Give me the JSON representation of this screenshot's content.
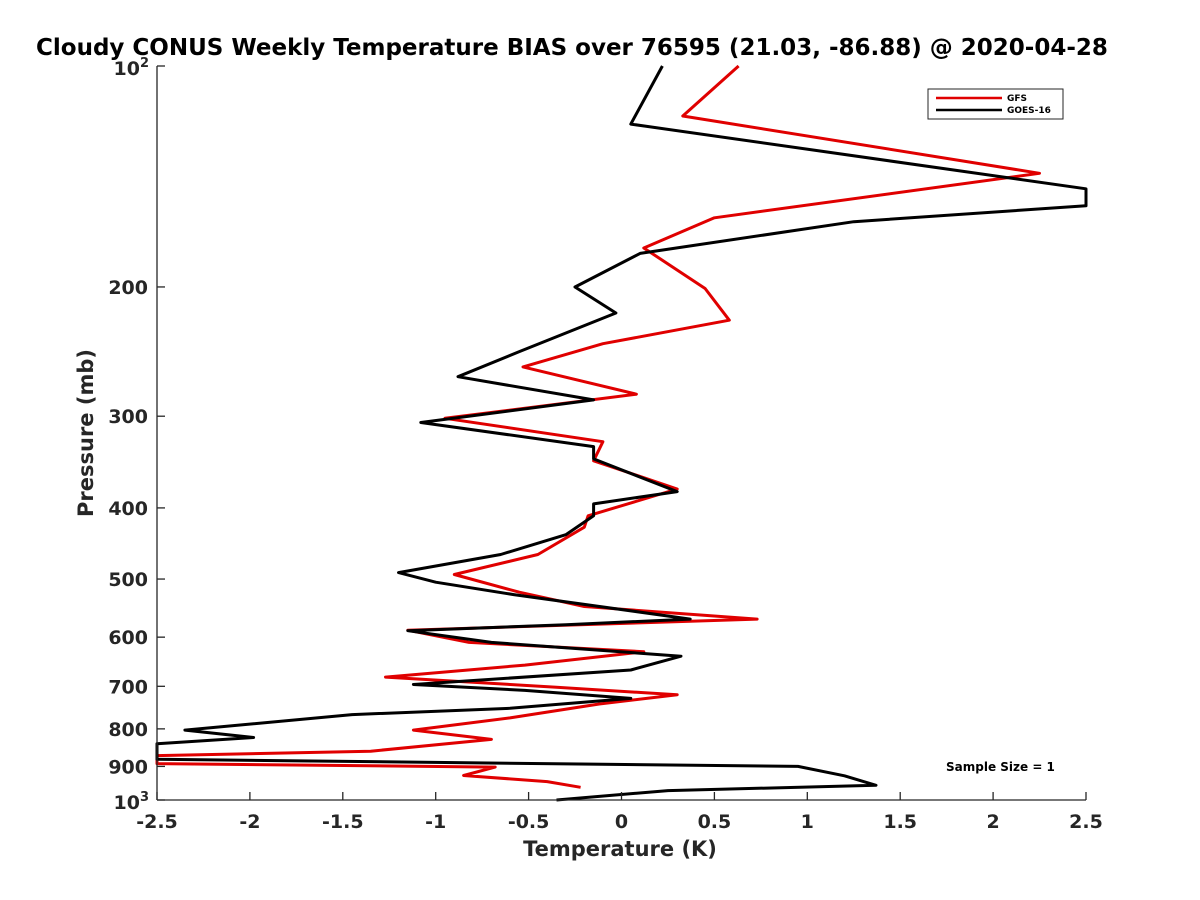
{
  "chart_data": {
    "type": "line",
    "title": "Cloudy CONUS Weekly Temperature BIAS over 76595 (21.03, -86.88) @ 2020-04-28",
    "xlabel": "Temperature (K)",
    "ylabel": "Pressure (mb)",
    "xlim": [
      -2.5,
      2.5
    ],
    "ylim": [
      100,
      1000
    ],
    "yscale": "log",
    "yreverse": true,
    "xticks": [
      -2.5,
      -2,
      -1.5,
      -1,
      -0.5,
      0,
      0.5,
      1,
      1.5,
      2,
      2.5
    ],
    "xtick_labels": [
      "-2.5",
      "-2",
      "-1.5",
      "-1",
      "-0.5",
      "0",
      "0.5",
      "1",
      "1.5",
      "2",
      "2.5"
    ],
    "yticks": [
      200,
      300,
      400,
      500,
      600,
      700,
      800,
      900
    ],
    "ytick_labels": [
      "200",
      "300",
      "400",
      "500",
      "600",
      "700",
      "800",
      "900"
    ],
    "ytick_min": {
      "base": "10",
      "exp": "2"
    },
    "ytick_max": {
      "base": "10",
      "exp": "3"
    },
    "legend_position": "top-right",
    "annotation": "Sample Size = 1",
    "series": [
      {
        "name": "GFS",
        "color": "#e00000",
        "points": [
          [
            0.63,
            100
          ],
          [
            0.33,
            117
          ],
          [
            2.25,
            140
          ],
          [
            0.5,
            161
          ],
          [
            0.12,
            177
          ],
          [
            0.45,
            201
          ],
          [
            0.58,
            222
          ],
          [
            -0.1,
            239
          ],
          [
            -0.53,
            257
          ],
          [
            0.08,
            280
          ],
          [
            -0.95,
            302
          ],
          [
            -0.1,
            325
          ],
          [
            -0.15,
            345
          ],
          [
            0.3,
            377
          ],
          [
            -0.18,
            410
          ],
          [
            -0.2,
            425
          ],
          [
            -0.45,
            463
          ],
          [
            -0.9,
            493
          ],
          [
            -0.55,
            521
          ],
          [
            -0.2,
            545
          ],
          [
            0.73,
            567
          ],
          [
            -1.15,
            587
          ],
          [
            -0.82,
            610
          ],
          [
            0.12,
            628
          ],
          [
            -0.52,
            655
          ],
          [
            -1.27,
            680
          ],
          [
            -0.35,
            702
          ],
          [
            0.3,
            719
          ],
          [
            -0.12,
            740
          ],
          [
            -0.6,
            773
          ],
          [
            -1.12,
            803
          ],
          [
            -0.7,
            827
          ],
          [
            -1.35,
            858
          ],
          [
            -2.5,
            870
          ],
          [
            -2.5,
            892
          ],
          [
            -0.68,
            902
          ],
          [
            -0.85,
            926
          ],
          [
            -0.4,
            944
          ],
          [
            -0.22,
            961
          ]
        ]
      },
      {
        "name": "GOES-16",
        "color": "#000000",
        "points": [
          [
            0.22,
            100
          ],
          [
            0.05,
            120
          ],
          [
            2.5,
            147
          ],
          [
            2.5,
            155
          ],
          [
            1.25,
            163
          ],
          [
            0.1,
            180
          ],
          [
            -0.25,
            200
          ],
          [
            -0.03,
            217
          ],
          [
            -0.55,
            245
          ],
          [
            -0.88,
            265
          ],
          [
            -0.15,
            285
          ],
          [
            -1.08,
            306
          ],
          [
            -0.15,
            330
          ],
          [
            -0.15,
            343
          ],
          [
            0.3,
            380
          ],
          [
            -0.15,
            395
          ],
          [
            -0.15,
            410
          ],
          [
            -0.3,
            435
          ],
          [
            -0.65,
            463
          ],
          [
            -1.2,
            490
          ],
          [
            -1.0,
            505
          ],
          [
            -0.58,
            525
          ],
          [
            0.37,
            567
          ],
          [
            -0.3,
            577
          ],
          [
            -1.15,
            588
          ],
          [
            -0.7,
            610
          ],
          [
            0.32,
            637
          ],
          [
            0.05,
            665
          ],
          [
            -1.12,
            696
          ],
          [
            -0.52,
            709
          ],
          [
            0.05,
            727
          ],
          [
            -0.6,
            750
          ],
          [
            -1.45,
            765
          ],
          [
            -2.35,
            803
          ],
          [
            -1.98,
            822
          ],
          [
            -2.5,
            838
          ],
          [
            -2.5,
            880
          ],
          [
            0.95,
            900
          ],
          [
            1.2,
            927
          ],
          [
            1.37,
            955
          ],
          [
            0.25,
            971
          ],
          [
            -0.35,
            1000
          ]
        ]
      }
    ]
  }
}
